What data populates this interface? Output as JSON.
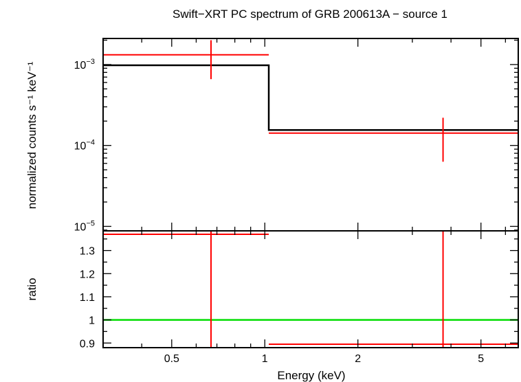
{
  "chart_data": [
    {
      "type": "line",
      "panel": "spectrum",
      "title": "Swift−XRT PC spectrum of GRB 200613A − source 1",
      "xlabel": "",
      "ylabel": "normalized counts s⁻¹ keV⁻¹",
      "x_scale": "log",
      "y_scale": "log",
      "xlim": [
        0.3,
        6.6
      ],
      "ylim": [
        8.8e-06,
        0.0021
      ],
      "x_ticks": [],
      "y_ticks": [
        {
          "value": 1e-05,
          "base": "10",
          "exp": "−5"
        },
        {
          "value": 0.0001,
          "base": "10",
          "exp": "−4"
        },
        {
          "value": 0.001,
          "base": "10",
          "exp": "−3"
        }
      ],
      "series": [
        {
          "kind": "step",
          "color": "#000000",
          "bins": [
            {
              "x_lo": 0.3,
              "x_hi": 1.03,
              "y": 0.00098
            },
            {
              "x_lo": 1.03,
              "x_hi": 6.6,
              "y": 0.000155
            }
          ]
        },
        {
          "kind": "errorbar",
          "color": "#ff0000",
          "points": [
            {
              "x": 0.67,
              "x_lo": 0.3,
              "x_hi": 1.03,
              "y": 0.00132,
              "y_lo": 0.00066,
              "y_hi": 0.002
            },
            {
              "x": 3.77,
              "x_lo": 1.03,
              "x_hi": 6.6,
              "y": 0.000142,
              "y_lo": 6.3e-05,
              "y_hi": 0.00022
            }
          ]
        }
      ]
    },
    {
      "type": "line",
      "panel": "ratio",
      "title": "",
      "xlabel": "Energy (keV)",
      "ylabel": "ratio",
      "x_scale": "log",
      "y_scale": "linear",
      "xlim": [
        0.3,
        6.6
      ],
      "ylim": [
        0.88,
        1.385
      ],
      "x_ticks": [
        {
          "value": 0.5,
          "label": "0.5"
        },
        {
          "value": 1,
          "label": "1"
        },
        {
          "value": 2,
          "label": "2"
        },
        {
          "value": 5,
          "label": "5"
        }
      ],
      "y_ticks": [
        {
          "value": 0.9,
          "label": "0.9"
        },
        {
          "value": 1,
          "label": "1"
        },
        {
          "value": 1.1,
          "label": "1.1"
        },
        {
          "value": 1.2,
          "label": "1.2"
        },
        {
          "value": 1.3,
          "label": "1.3"
        }
      ],
      "reference_line": {
        "y": 1,
        "color": "#00dd00"
      },
      "series": [
        {
          "kind": "errorbar",
          "color": "#ff0000",
          "points": [
            {
              "x": 0.67,
              "x_lo": 0.3,
              "x_hi": 1.03,
              "y": 1.37,
              "y_lo": 0.88,
              "y_hi": 1.385
            },
            {
              "x": 3.77,
              "x_lo": 1.03,
              "x_hi": 6.6,
              "y": 0.895,
              "y_lo": 0.88,
              "y_hi": 1.385
            }
          ]
        }
      ]
    }
  ]
}
